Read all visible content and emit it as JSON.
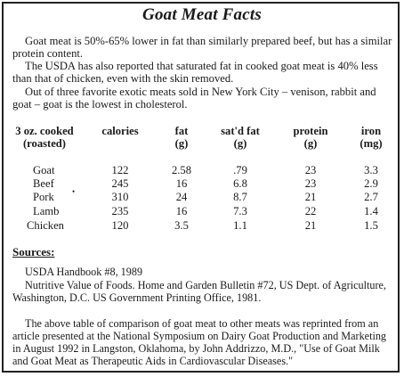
{
  "title": "Goat Meat Facts",
  "paragraphs": [
    "Goat meat is 50%-65% lower in fat than similarly prepared beef, but has a similar protein content.",
    "The USDA has also reported that saturated fat in cooked goat meat is 40% less than that of chicken, even with the skin removed.",
    "Out of three favorite exotic meats sold in New York City – venison, rabbit and goat – goat is the lowest in cholesterol."
  ],
  "table": {
    "headers": [
      [
        "3 oz. cooked",
        "(roasted)"
      ],
      [
        "calories",
        ""
      ],
      [
        "fat",
        "(g)"
      ],
      [
        "sat'd fat",
        "(g)"
      ],
      [
        "protein",
        "(g)"
      ],
      [
        "iron",
        "(mg)"
      ]
    ],
    "rows": [
      [
        "Goat",
        "122",
        "2.58",
        ".79",
        "23",
        "3.3"
      ],
      [
        "Beef",
        "245",
        "16",
        "6.8",
        "23",
        "2.9"
      ],
      [
        "Pork",
        "310",
        "24",
        "8.7",
        "21",
        "2.7"
      ],
      [
        "Lamb",
        "235",
        "16",
        "7.3",
        "22",
        "1.4"
      ],
      [
        "Chicken",
        "120",
        "3.5",
        "1.1",
        "21",
        "1.5"
      ]
    ]
  },
  "sources_title": "Sources:",
  "sources": [
    "USDA Handbook #8, 1989",
    "Nutritive Value of Foods. Home and Garden Bulletin #72, US Dept. of Agriculture, Washington, D.C. US Government Printing Office, 1981.",
    "The above table of comparison of goat meat to other meats was reprinted from an article presented at the National Symposium on Dairy Goat Production and Marketing in August 1992 in Langston, Oklahoma, by John Addrizzo, M.D., \"Use of Goat Milk and Goat Meat as Therapeutic Aids in Cardiovascular Diseases.\""
  ]
}
